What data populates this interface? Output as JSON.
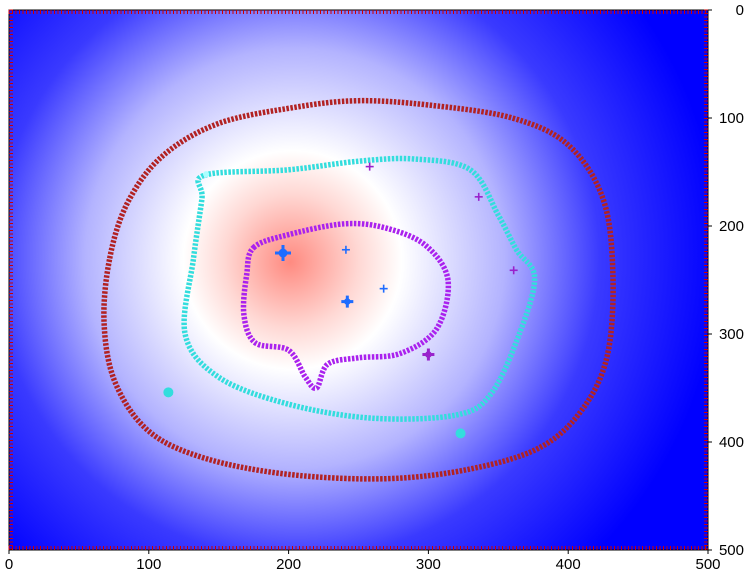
{
  "chart_data": {
    "type": "heatmap",
    "title": "",
    "xlabel": "",
    "ylabel": "",
    "xlim": [
      0,
      500
    ],
    "ylim": [
      0,
      500
    ],
    "y_axis_inverted": true,
    "y_axis_side": "right",
    "grid": false,
    "legend": "none",
    "x_ticks": [
      {
        "value": 0,
        "label": "0"
      },
      {
        "value": 100,
        "label": "100"
      },
      {
        "value": 200,
        "label": "200"
      },
      {
        "value": 300,
        "label": "300"
      },
      {
        "value": 400,
        "label": "400"
      },
      {
        "value": 500,
        "label": "500"
      }
    ],
    "y_ticks": [
      {
        "value": 0,
        "label": "0"
      },
      {
        "value": 100,
        "label": "100"
      },
      {
        "value": 200,
        "label": "200"
      },
      {
        "value": 300,
        "label": "300"
      },
      {
        "value": 400,
        "label": "400"
      },
      {
        "value": 500,
        "label": "500"
      }
    ],
    "colormap": {
      "low": "#0000ff",
      "mid": "#ffffff",
      "high": "#ff8a80"
    },
    "field_center": [
      230,
      262
    ],
    "contours": [
      {
        "level_name": "outer",
        "color": "#b22222",
        "points": [
          [
            72,
            230
          ],
          [
            85,
            178
          ],
          [
            110,
            135
          ],
          [
            150,
            105
          ],
          [
            205,
            90
          ],
          [
            250,
            84
          ],
          [
            300,
            88
          ],
          [
            360,
            100
          ],
          [
            400,
            125
          ],
          [
            425,
            175
          ],
          [
            432,
            245
          ],
          [
            428,
            320
          ],
          [
            410,
            370
          ],
          [
            380,
            405
          ],
          [
            330,
            425
          ],
          [
            270,
            434
          ],
          [
            200,
            430
          ],
          [
            140,
            415
          ],
          [
            100,
            390
          ],
          [
            76,
            345
          ],
          [
            68,
            290
          ]
        ]
      },
      {
        "level_name": "middle",
        "color": "#33dddd",
        "points": [
          [
            140,
            153
          ],
          [
            200,
            148
          ],
          [
            250,
            140
          ],
          [
            290,
            138
          ],
          [
            330,
            148
          ],
          [
            350,
            190
          ],
          [
            363,
            222
          ],
          [
            376,
            248
          ],
          [
            365,
            300
          ],
          [
            345,
            355
          ],
          [
            320,
            375
          ],
          [
            260,
            378
          ],
          [
            200,
            365
          ],
          [
            150,
            340
          ],
          [
            126,
            300
          ],
          [
            132,
            230
          ],
          [
            138,
            175
          ]
        ]
      },
      {
        "level_name": "inner",
        "color": "#aa22ee",
        "points": [
          [
            175,
            220
          ],
          [
            200,
            208
          ],
          [
            240,
            198
          ],
          [
            270,
            202
          ],
          [
            298,
            218
          ],
          [
            314,
            250
          ],
          [
            306,
            295
          ],
          [
            280,
            318
          ],
          [
            250,
            322
          ],
          [
            228,
            328
          ],
          [
            220,
            350
          ],
          [
            212,
            340
          ],
          [
            200,
            315
          ],
          [
            176,
            308
          ],
          [
            168,
            282
          ],
          [
            170,
            245
          ]
        ]
      }
    ],
    "markers": [
      {
        "x": 196,
        "y": 225,
        "symbol": "+",
        "color": "#1e6cff",
        "size": "large"
      },
      {
        "x": 241,
        "y": 222,
        "symbol": "+",
        "color": "#1e6cff",
        "size": "small"
      },
      {
        "x": 242,
        "y": 270,
        "symbol": "+",
        "color": "#1e6cff",
        "size": "medium"
      },
      {
        "x": 268,
        "y": 258,
        "symbol": "+",
        "color": "#1e6cff",
        "size": "small"
      },
      {
        "x": 258,
        "y": 145,
        "symbol": "+",
        "color": "#9922cc",
        "size": "small"
      },
      {
        "x": 336,
        "y": 173,
        "symbol": "+",
        "color": "#9922cc",
        "size": "small"
      },
      {
        "x": 361,
        "y": 241,
        "symbol": "+",
        "color": "#9922cc",
        "size": "small"
      },
      {
        "x": 300,
        "y": 319,
        "symbol": "+",
        "color": "#9922cc",
        "size": "medium"
      },
      {
        "x": 114,
        "y": 354,
        "symbol": "dot",
        "color": "#33dddd",
        "size": "medium"
      },
      {
        "x": 323,
        "y": 392,
        "symbol": "dot",
        "color": "#33dddd",
        "size": "medium"
      },
      {
        "x": 141,
        "y": 152,
        "symbol": "dot",
        "color": "#aaffff",
        "size": "small"
      }
    ]
  }
}
